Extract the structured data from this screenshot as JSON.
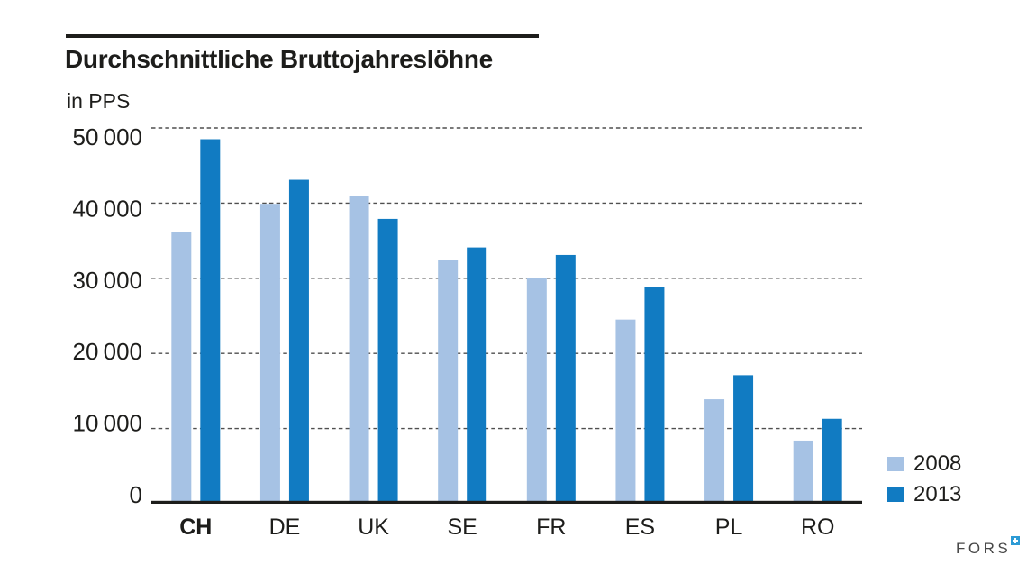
{
  "header": {
    "title": "Durchschnittliche Bruttojahreslöhne",
    "subtitle": "in PPS"
  },
  "legend": {
    "items": [
      {
        "label": "2008",
        "color": "#a6c2e4"
      },
      {
        "label": "2013",
        "color": "#117bc2"
      }
    ]
  },
  "footer": {
    "brand": "FORS"
  },
  "colors": {
    "series_2008": "#a6c2e4",
    "series_2013": "#117bc2",
    "axis_line": "#1d1d1b",
    "gridline": "#4f4f4f",
    "text": "#1d1d1b",
    "brand_text": "#474747",
    "brand_square": "#2d9bd5"
  },
  "chart_data": {
    "type": "bar",
    "title": "Durchschnittliche Bruttojahreslöhne",
    "ylabel": "in PPS",
    "xlabel": "",
    "categories": [
      "CH",
      "DE",
      "UK",
      "SE",
      "FR",
      "ES",
      "PL",
      "RO"
    ],
    "series": [
      {
        "name": "2008",
        "color": "#a6c2e4",
        "values": [
          36200,
          39900,
          41000,
          32400,
          30000,
          24500,
          13900,
          8400
        ]
      },
      {
        "name": "2013",
        "color": "#117bc2",
        "values": [
          48500,
          43100,
          37900,
          34100,
          33100,
          28800,
          17100,
          11300
        ]
      }
    ],
    "ylim": [
      0,
      50000
    ],
    "ytick_interval": 10000,
    "ytick_labels": [
      "0",
      "10 000",
      "20 000",
      "30 000",
      "40 000",
      "50 000"
    ],
    "grid": "dashed-horizontal",
    "legend_position": "bottom-right",
    "bold_category": "CH"
  }
}
